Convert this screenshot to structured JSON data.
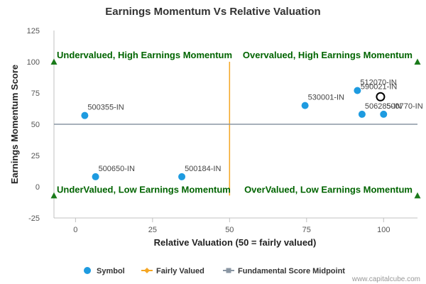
{
  "chart_data": {
    "type": "scatter",
    "title": "Earnings Momentum Vs Relative Valuation",
    "xlabel": "Relative Valuation (50 = fairly valued)",
    "ylabel": "Earnings Momentum Score",
    "xlim": [
      -7,
      111
    ],
    "ylim": [
      -25,
      125
    ],
    "x_ticks": [
      "0",
      "25",
      "50",
      "75",
      "100"
    ],
    "y_ticks": [
      "125",
      "100",
      "75",
      "50",
      "25",
      "0",
      "-25"
    ],
    "grid": false,
    "quadrant_labels": {
      "top_left": "Undervalued, High Earnings Momentum",
      "top_right": "Overvalued, High Earnings Momentum",
      "bottom_left": "UnderValued, Low Earnings Momentum",
      "bottom_right": "OverValued, Low Earnings Momentum"
    },
    "series": [
      {
        "name": "Symbol",
        "color": "#1e9be0",
        "points": [
          {
            "label": "500355-IN",
            "x": 3,
            "y": 57
          },
          {
            "label": "500650-IN",
            "x": 6.5,
            "y": 8
          },
          {
            "label": "500184-IN",
            "x": 34.5,
            "y": 8
          },
          {
            "label": "530001-IN",
            "x": 74.5,
            "y": 65
          },
          {
            "label": "512070-IN",
            "x": 91.5,
            "y": 77
          },
          {
            "label": "506285-IN",
            "x": 93,
            "y": 58
          },
          {
            "label": "500770-IN",
            "x": 100,
            "y": 58
          }
        ]
      }
    ],
    "highlight_point": {
      "label": "590021-IN",
      "x": 99,
      "y": 72,
      "color": "#000000"
    },
    "reference_lines": [
      {
        "name": "Fairly Valued",
        "orientation": "vertical",
        "value": 50,
        "range": [
          -7,
          100
        ],
        "color": "#f5a623"
      },
      {
        "name": "Fundamental Score Midpoint",
        "orientation": "horizontal",
        "value": 50,
        "color": "#8a96a3"
      }
    ],
    "corner_markers": [
      {
        "x": -7,
        "y": 100
      },
      {
        "x": 111,
        "y": 100
      },
      {
        "x": -7,
        "y": -7
      },
      {
        "x": 111,
        "y": -7
      }
    ],
    "marker_color": "#1a7a1a",
    "legend": {
      "placement": "bottom",
      "items": [
        {
          "label": "Symbol",
          "marker": "circle",
          "color": "#1e9be0"
        },
        {
          "label": "Fairly Valued",
          "marker": "line-diamond",
          "color": "#f5a623"
        },
        {
          "label": "Fundamental Score Midpoint",
          "marker": "line-square",
          "color": "#8a96a3"
        }
      ]
    },
    "credit": "www.capitalcube.com"
  }
}
